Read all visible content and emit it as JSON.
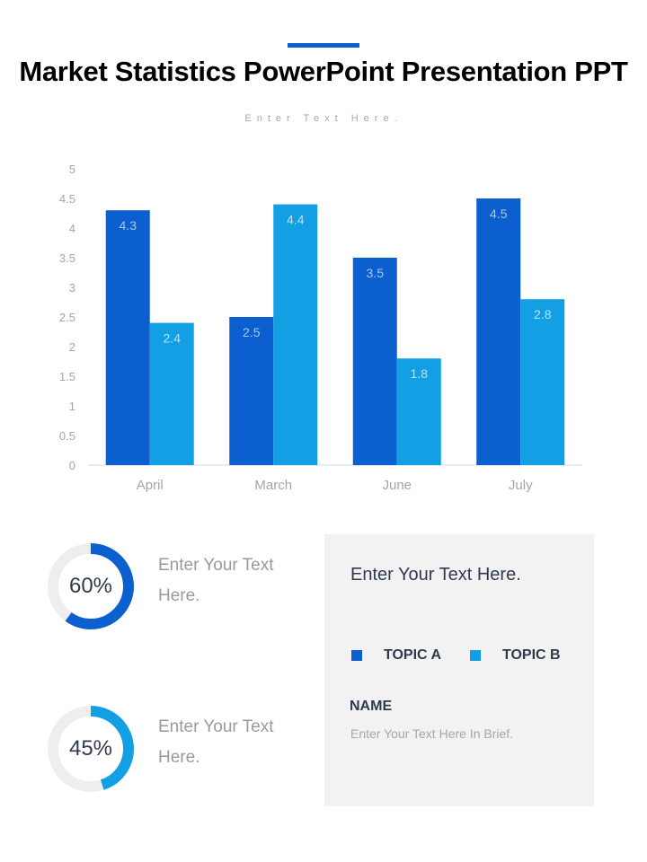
{
  "header": {
    "title": "Market Statistics PowerPoint Presentation PPT",
    "subtitle": "Enter Text Here."
  },
  "colors": {
    "accent": "#0b5fce",
    "topic_a": "#0b5fce",
    "topic_b": "#139fe4",
    "ring_track": "#eeeeee",
    "panel_bg": "#f2f2f2"
  },
  "chart_data": {
    "type": "bar",
    "categories": [
      "April",
      "March",
      "June",
      "July"
    ],
    "series": [
      {
        "name": "TOPIC A",
        "values": [
          4.3,
          2.5,
          3.5,
          4.5
        ]
      },
      {
        "name": "TOPIC B",
        "values": [
          2.4,
          4.4,
          1.8,
          2.8
        ]
      }
    ],
    "ylim": [
      0,
      5
    ],
    "yticks": [
      "0",
      "0.5",
      "1",
      "1.5",
      "2",
      "2.5",
      "3",
      "3.5",
      "4",
      "4.5",
      "5"
    ],
    "grid": false,
    "data_labels": true
  },
  "stats": [
    {
      "value": "60%",
      "percent": 60,
      "color": "#0b5fce",
      "text_line1": "Enter Your Text",
      "text_line2": "Here."
    },
    {
      "value": "45%",
      "percent": 45,
      "color": "#139fe4",
      "text_line1": "Enter Your Text",
      "text_line2": "Here."
    }
  ],
  "panel": {
    "heading": "Enter Your Text Here.",
    "legend": [
      {
        "label": "TOPIC A",
        "color": "#0b5fce"
      },
      {
        "label": "TOPIC B",
        "color": "#139fe4"
      }
    ],
    "name_label": "NAME",
    "description": "Enter Your Text Here In Brief."
  }
}
